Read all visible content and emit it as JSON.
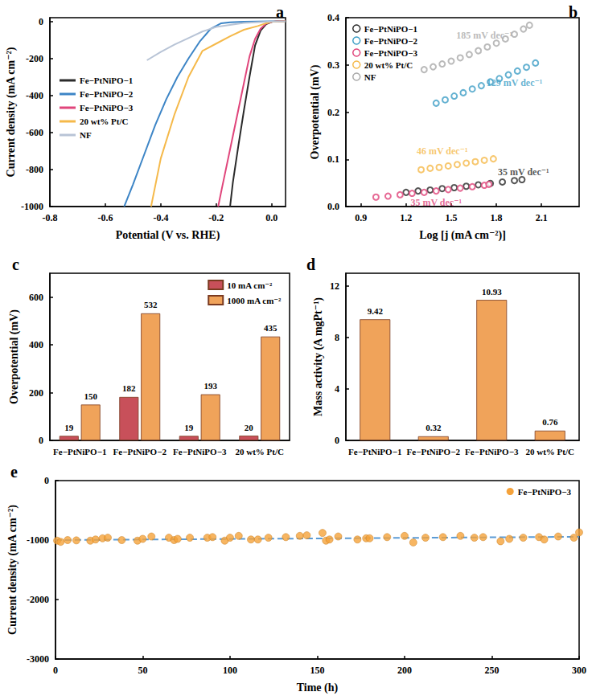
{
  "chart_data": [
    {
      "type": "line",
      "title": "a",
      "x_label": "Potential (V vs. RHE)",
      "y_label": "Current density (mA cm⁻²)",
      "xlim": [
        -0.8,
        0.05
      ],
      "xticks": [
        -0.8,
        -0.6,
        -0.4,
        -0.2,
        {
          "value": 0,
          "label": "0.0"
        }
      ],
      "ylim": [
        -1000,
        20
      ],
      "yticks": [
        -1000,
        -800,
        -600,
        -400,
        -200,
        0
      ],
      "grid": false,
      "legend": "left",
      "series": [
        {
          "name": "Fe−PtNiPO−1",
          "color": "#2b2b2b",
          "x": [
            0.05,
            0.02,
            0,
            -0.02,
            -0.04,
            -0.06,
            -0.08,
            -0.1,
            -0.12,
            -0.14,
            -0.15
          ],
          "values": [
            2,
            1,
            -3,
            -15,
            -50,
            -130,
            -300,
            -480,
            -670,
            -870,
            -1000
          ]
        },
        {
          "name": "Fe−PtNiPO−2",
          "color": "#3d85c6",
          "x": [
            0.05,
            0,
            -0.1,
            -0.15,
            -0.182,
            -0.22,
            -0.26,
            -0.3,
            -0.34,
            -0.38,
            -0.42,
            -0.46,
            -0.5,
            -0.532
          ],
          "values": [
            1,
            0,
            -2,
            -5,
            -10,
            -40,
            -110,
            -200,
            -300,
            -420,
            -560,
            -720,
            -880,
            -1000
          ]
        },
        {
          "name": "Fe−PtNiPO−3",
          "color": "#e0457b",
          "x": [
            0.05,
            0.02,
            0,
            -0.02,
            -0.04,
            -0.06,
            -0.08,
            -0.1,
            -0.12,
            -0.14,
            -0.16,
            -0.18,
            -0.193
          ],
          "values": [
            2,
            1,
            -3,
            -12,
            -40,
            -95,
            -190,
            -333,
            -476,
            -619,
            -762,
            -905,
            -1000
          ]
        },
        {
          "name": "20 wt% Pt/C",
          "color": "#f5b94a",
          "x": [
            0.05,
            0,
            -0.02,
            -0.05,
            -0.1,
            -0.15,
            -0.2,
            -0.25,
            -0.3,
            -0.35,
            -0.4,
            -0.435
          ],
          "values": [
            1,
            -2,
            -10,
            -25,
            -45,
            -80,
            -120,
            -160,
            -300,
            -500,
            -740,
            -1000
          ]
        },
        {
          "name": "NF",
          "color": "#b8c4d6",
          "x": [
            0.05,
            0,
            -0.1,
            -0.2,
            -0.25,
            -0.3,
            -0.35,
            -0.4,
            -0.45
          ],
          "values": [
            1,
            -1,
            -8,
            -30,
            -55,
            -90,
            -125,
            -165,
            -210
          ]
        }
      ]
    },
    {
      "type": "scatter",
      "title": "b",
      "x_label": "Log [j (mA cm⁻²)]",
      "y_label": "Overpotential (mV)",
      "xlim": [
        0.8,
        2.35
      ],
      "xticks": [
        0.9,
        1.2,
        1.5,
        1.8,
        2.1
      ],
      "ylim": [
        0,
        0.4
      ],
      "yticks": [
        {
          "value": 0,
          "label": "0.0"
        },
        0.1,
        0.2,
        0.3,
        0.4
      ],
      "grid": false,
      "legend": "upper left",
      "marker": "open_circle",
      "series": [
        {
          "name": "Fe−PtNiPO−1",
          "color": "#2b2b2b",
          "x": [
            1.2,
            1.28,
            1.36,
            1.44,
            1.52,
            1.6,
            1.68,
            1.76,
            1.84,
            1.92,
            1.97
          ],
          "values": [
            0.03,
            0.033,
            0.035,
            0.038,
            0.04,
            0.043,
            0.046,
            0.049,
            0.052,
            0.055,
            0.057
          ]
        },
        {
          "name": "Fe−PtNiPO−2",
          "color": "#3d9ec6",
          "x": [
            1.4,
            1.46,
            1.52,
            1.58,
            1.64,
            1.7,
            1.76,
            1.82,
            1.88,
            1.94,
            2.0,
            2.06
          ],
          "values": [
            0.219,
            0.226,
            0.234,
            0.241,
            0.249,
            0.256,
            0.264,
            0.271,
            0.279,
            0.287,
            0.295,
            0.304
          ]
        },
        {
          "name": "Fe−PtNiPO−3",
          "color": "#e0457b",
          "x": [
            1.0,
            1.08,
            1.16,
            1.24,
            1.32,
            1.4,
            1.48,
            1.56,
            1.64,
            1.72,
            1.75
          ],
          "values": [
            0.02,
            0.022,
            0.025,
            0.028,
            0.03,
            0.033,
            0.036,
            0.039,
            0.042,
            0.045,
            0.047
          ]
        },
        {
          "name": "20 wt% Pt/C",
          "color": "#f5b94a",
          "x": [
            1.3,
            1.36,
            1.42,
            1.48,
            1.54,
            1.6,
            1.66,
            1.72,
            1.78
          ],
          "values": [
            0.078,
            0.081,
            0.083,
            0.086,
            0.089,
            0.092,
            0.095,
            0.098,
            0.101
          ]
        },
        {
          "name": "NF",
          "color": "#a9a9a9",
          "x": [
            1.32,
            1.38,
            1.44,
            1.5,
            1.56,
            1.62,
            1.68,
            1.74,
            1.8,
            1.86,
            1.92,
            1.98,
            2.02
          ],
          "values": [
            0.29,
            0.296,
            0.302,
            0.308,
            0.315,
            0.322,
            0.33,
            0.338,
            0.346,
            0.355,
            0.365,
            0.376,
            0.384
          ]
        }
      ],
      "annotations": [
        {
          "text": "185 mV dec⁻¹",
          "x": 1.72,
          "y": 0.362,
          "color": "#a9a9a9"
        },
        {
          "text": "129 mV dec⁻¹",
          "x": 1.92,
          "y": 0.262,
          "color": "#3d9ec6"
        },
        {
          "text": "46 mV dec⁻¹",
          "x": 1.44,
          "y": 0.118,
          "color": "#f5b94a"
        },
        {
          "text": "35 mV dec⁻¹",
          "x": 1.98,
          "y": 0.074,
          "color": "#2b2b2b"
        },
        {
          "text": "35 mV dec⁻¹",
          "x": 1.4,
          "y": 0.008,
          "color": "#e0457b"
        }
      ]
    },
    {
      "type": "bar",
      "title": "c",
      "y_label": "Overpotential (mV)",
      "categories": [
        "Fe−PtNiPO−1",
        "Fe−PtNiPO−2",
        "Fe−PtNiPO−3",
        "20 wt% Pt/C"
      ],
      "ylim": [
        0,
        700
      ],
      "yticks": [
        0,
        200,
        400,
        600
      ],
      "grid": false,
      "legend": "upper right",
      "data_labels": true,
      "series": [
        {
          "name": "10 mA cm⁻²",
          "color": "#c8505a",
          "values": [
            19,
            182,
            19,
            20
          ]
        },
        {
          "name": "1000 mA cm⁻²",
          "color": "#f0a35a",
          "values": [
            150,
            532,
            193,
            435
          ]
        }
      ]
    },
    {
      "type": "bar",
      "title": "d",
      "y_label": "Mass activity (A mgPt⁻¹)",
      "categories": [
        "Fe−PtNiPO−1",
        "Fe−PtNiPO−2",
        "Fe−PtNiPO−3",
        "20 wt% Pt/C"
      ],
      "values": [
        9.42,
        0.32,
        10.93,
        0.76
      ],
      "color": "#f0a35a",
      "ylim": [
        0,
        13
      ],
      "yticks": [
        0,
        4,
        8,
        12
      ],
      "grid": false,
      "data_labels": true
    },
    {
      "type": "scatter",
      "title": "e",
      "x_label": "Time (h)",
      "y_label": "Current density (mA cm⁻²)",
      "xlim": [
        0,
        300
      ],
      "xticks": [
        0,
        50,
        100,
        150,
        200,
        250,
        300
      ],
      "ylim": [
        -3000,
        0
      ],
      "yticks": [
        -3000,
        -2000,
        -1000,
        0
      ],
      "grid": false,
      "legend": "upper right",
      "marker": "circle",
      "series": [
        {
          "name": "Fe−PtNiPO−3",
          "color": "#f5a23a",
          "x": [
            1,
            3,
            7,
            12,
            20,
            23,
            27,
            30,
            38,
            47,
            50,
            55,
            65,
            68,
            70,
            77,
            87,
            90,
            97,
            100,
            105,
            112,
            116,
            122,
            132,
            140,
            144,
            153,
            155,
            157,
            162,
            173,
            178,
            180,
            190,
            200,
            205,
            212,
            222,
            232,
            240,
            245,
            255,
            260,
            268,
            277,
            280,
            288,
            297,
            300
          ],
          "values": [
            -1010,
            -1030,
            -1000,
            -1005,
            -1010,
            -990,
            -970,
            -960,
            -1000,
            -1010,
            -980,
            -940,
            -960,
            -1000,
            -980,
            -960,
            -960,
            -950,
            -1010,
            -960,
            -930,
            -990,
            -990,
            -960,
            -950,
            -930,
            -920,
            -880,
            -1010,
            -990,
            -940,
            -990,
            -970,
            -970,
            -950,
            -930,
            -1040,
            -960,
            -950,
            -930,
            -960,
            -950,
            -1020,
            -980,
            -960,
            -950,
            -990,
            -940,
            -960,
            -870
          ]
        }
      ],
      "trend": {
        "x": [
          0,
          300
        ],
        "values": [
          -1000,
          -945
        ],
        "color": "#5b9bd5",
        "line_style": "dashed"
      }
    }
  ]
}
